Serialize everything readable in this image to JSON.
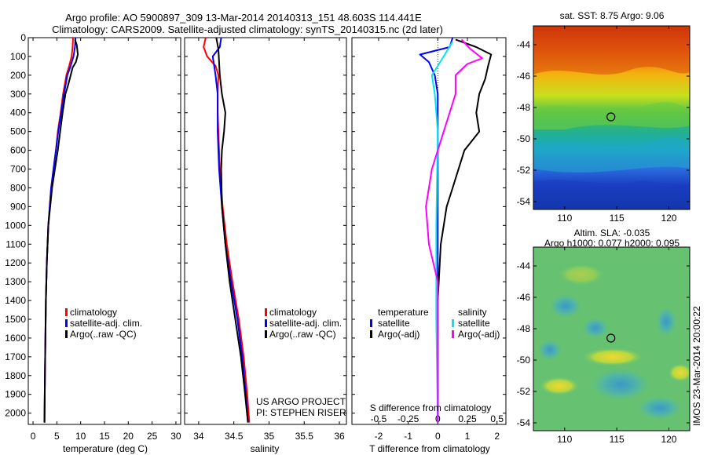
{
  "header": {
    "line1": "Argo profile: AO 5900897_309 13-Mar-2014 20140313_151 48.603S 114.441E",
    "line2": "Climatology: CARS2009. Satellite-adjusted climatology: synTS_20140315.nc (2d later)"
  },
  "colors": {
    "climatology": "#ff0000",
    "satellite": "#0000ff",
    "argo": "#000000",
    "sat_salinity": "#00e5ee",
    "argo_salinity": "#ff00ff"
  },
  "credit": {
    "line1": "US ARGO PROJECT",
    "line2": "PI: STEPHEN RISER"
  },
  "side_stamp": "IMOS 23-Mar-2014 20:00:22",
  "chart_data": [
    {
      "id": "temperature",
      "type": "line",
      "xlabel": "temperature (deg C)",
      "ylabel": "",
      "xlim": [
        -1,
        31
      ],
      "ylim": [
        2060,
        0
      ],
      "xticks": [
        0,
        5,
        10,
        15,
        20,
        25,
        30
      ],
      "xticklabels": [
        "0",
        "5",
        "10",
        "15",
        "20",
        "25",
        "30"
      ],
      "yticks": [
        0,
        100,
        200,
        300,
        400,
        500,
        600,
        700,
        800,
        900,
        1000,
        1100,
        1200,
        1300,
        1400,
        1500,
        1600,
        1700,
        1800,
        1900,
        2000
      ],
      "yticklabels": [
        "0",
        "100",
        "200",
        "300",
        "400",
        "500",
        "600",
        "700",
        "800",
        "900",
        "1000",
        "1100",
        "1200",
        "1300",
        "1400",
        "1500",
        "1600",
        "1700",
        "1800",
        "1900",
        "2000"
      ],
      "legend": [
        "climatology",
        "satellite-adj. clim.",
        "Argo(..raw -QC)"
      ],
      "series": [
        {
          "name": "climatology",
          "color": "#ff0000",
          "points": [
            [
              8.4,
              0
            ],
            [
              8.3,
              50
            ],
            [
              8.1,
              100
            ],
            [
              7.6,
              150
            ],
            [
              7.0,
              200
            ],
            [
              6.3,
              300
            ],
            [
              5.8,
              400
            ],
            [
              5.2,
              500
            ],
            [
              4.8,
              600
            ],
            [
              4.3,
              700
            ],
            [
              3.8,
              800
            ],
            [
              3.5,
              900
            ],
            [
              3.2,
              1000
            ],
            [
              2.9,
              1200
            ],
            [
              2.7,
              1400
            ],
            [
              2.6,
              1600
            ],
            [
              2.5,
              1800
            ],
            [
              2.4,
              2050
            ]
          ]
        },
        {
          "name": "satellite-adj. clim.",
          "color": "#0000ff",
          "points": [
            [
              8.9,
              0
            ],
            [
              8.8,
              50
            ],
            [
              8.5,
              100
            ],
            [
              7.9,
              150
            ],
            [
              7.2,
              200
            ],
            [
              6.5,
              300
            ],
            [
              5.9,
              400
            ],
            [
              5.3,
              500
            ],
            [
              4.8,
              600
            ],
            [
              4.3,
              700
            ],
            [
              3.8,
              800
            ],
            [
              3.5,
              900
            ],
            [
              3.2,
              1000
            ],
            [
              2.9,
              1200
            ],
            [
              2.7,
              1400
            ],
            [
              2.6,
              1600
            ],
            [
              2.5,
              1800
            ],
            [
              2.4,
              2050
            ]
          ]
        },
        {
          "name": "Argo(..raw -QC)",
          "color": "#000000",
          "points": [
            [
              8.8,
              10
            ],
            [
              9.2,
              40
            ],
            [
              9.4,
              90
            ],
            [
              9.0,
              130
            ],
            [
              8.3,
              160
            ],
            [
              7.9,
              200
            ],
            [
              7.4,
              250
            ],
            [
              6.8,
              300
            ],
            [
              6.2,
              400
            ],
            [
              5.7,
              500
            ],
            [
              5.2,
              600
            ],
            [
              4.6,
              700
            ],
            [
              4.0,
              800
            ],
            [
              3.6,
              900
            ],
            [
              3.2,
              1000
            ],
            [
              2.9,
              1200
            ],
            [
              2.7,
              1400
            ],
            [
              2.6,
              1600
            ],
            [
              2.5,
              1800
            ],
            [
              2.4,
              2050
            ]
          ]
        }
      ]
    },
    {
      "id": "salinity",
      "type": "line",
      "xlabel": "salinity",
      "xlim": [
        33.8,
        36.1
      ],
      "ylim": [
        2060,
        0
      ],
      "xticks": [
        34,
        34.5,
        35,
        35.5,
        36
      ],
      "xticklabels": [
        "34",
        "34.5",
        "35",
        "35.5",
        "36"
      ],
      "yticks": [
        0,
        100,
        200,
        300,
        400,
        500,
        600,
        700,
        800,
        900,
        1000,
        1100,
        1200,
        1300,
        1400,
        1500,
        1600,
        1700,
        1800,
        1900,
        2000
      ],
      "legend": [
        "climatology",
        "satellite-adj. clim.",
        "Argo(..raw -QC)"
      ],
      "series": [
        {
          "name": "climatology",
          "color": "#ff0000",
          "points": [
            [
              34.1,
              0
            ],
            [
              34.07,
              50
            ],
            [
              34.12,
              100
            ],
            [
              34.24,
              150
            ],
            [
              34.28,
              200
            ],
            [
              34.27,
              300
            ],
            [
              34.27,
              400
            ],
            [
              34.28,
              500
            ],
            [
              34.3,
              700
            ],
            [
              34.34,
              900
            ],
            [
              34.4,
              1100
            ],
            [
              34.48,
              1300
            ],
            [
              34.57,
              1500
            ],
            [
              34.64,
              1700
            ],
            [
              34.69,
              1900
            ],
            [
              34.72,
              2050
            ]
          ]
        },
        {
          "name": "satellite-adj. clim.",
          "color": "#0000ff",
          "points": [
            [
              34.32,
              0
            ],
            [
              34.3,
              50
            ],
            [
              34.2,
              100
            ],
            [
              34.22,
              150
            ],
            [
              34.24,
              200
            ],
            [
              34.27,
              300
            ],
            [
              34.27,
              400
            ],
            [
              34.27,
              500
            ],
            [
              34.29,
              700
            ],
            [
              34.33,
              900
            ],
            [
              34.38,
              1100
            ],
            [
              34.46,
              1300
            ],
            [
              34.55,
              1500
            ],
            [
              34.62,
              1700
            ],
            [
              34.67,
              1900
            ],
            [
              34.7,
              2050
            ]
          ]
        },
        {
          "name": "Argo(..raw -QC)",
          "color": "#000000",
          "points": [
            [
              34.25,
              0
            ],
            [
              34.28,
              60
            ],
            [
              34.29,
              130
            ],
            [
              34.3,
              200
            ],
            [
              34.33,
              300
            ],
            [
              34.38,
              400
            ],
            [
              34.36,
              500
            ],
            [
              34.33,
              600
            ],
            [
              34.32,
              700
            ],
            [
              34.33,
              900
            ],
            [
              34.38,
              1100
            ],
            [
              34.44,
              1300
            ],
            [
              34.52,
              1500
            ],
            [
              34.6,
              1700
            ],
            [
              34.66,
              1900
            ],
            [
              34.7,
              2050
            ]
          ]
        }
      ]
    },
    {
      "id": "difference",
      "type": "line",
      "xlabel": "T difference from climatology",
      "xlabel_top": "S difference from climatology",
      "xlim": [
        -2.9,
        2.3
      ],
      "ylim": [
        2060,
        0
      ],
      "xticks": [
        -2,
        -1,
        0,
        1,
        2
      ],
      "xticklabels": [
        "-2",
        "-1",
        "0",
        "1",
        "2"
      ],
      "sticks_positions": [
        -2,
        -1,
        0,
        1,
        2
      ],
      "sticklabels": [
        "-0.5",
        "-0.25",
        "0",
        "0.25",
        "0.5"
      ],
      "yticks": [
        0,
        100,
        200,
        300,
        400,
        500,
        600,
        700,
        800,
        900,
        1000,
        1100,
        1200,
        1300,
        1400,
        1500,
        1600,
        1700,
        1800,
        1900,
        2000
      ],
      "legend_groups": [
        {
          "title": "temperature",
          "items": [
            "satellite",
            "Argo(-adj)"
          ]
        },
        {
          "title": "salinity",
          "items": [
            "satellite",
            "Argo(-adj)"
          ]
        }
      ],
      "series": [
        {
          "name": "temperature satellite",
          "color": "#0000ff",
          "points": [
            [
              0.5,
              0
            ],
            [
              0.4,
              50
            ],
            [
              -0.6,
              90
            ],
            [
              -0.3,
              130
            ],
            [
              -0.1,
              200
            ],
            [
              0,
              300
            ],
            [
              0,
              500
            ],
            [
              0,
              800
            ],
            [
              0,
              1200
            ],
            [
              0,
              1600
            ],
            [
              0,
              2050
            ]
          ]
        },
        {
          "name": "temperature Argo(-adj)",
          "color": "#000000",
          "points": [
            [
              0.6,
              10
            ],
            [
              1.3,
              50
            ],
            [
              1.8,
              90
            ],
            [
              1.7,
              150
            ],
            [
              1.6,
              220
            ],
            [
              1.4,
              300
            ],
            [
              1.3,
              400
            ],
            [
              1.4,
              500
            ],
            [
              0.9,
              600
            ],
            [
              0.7,
              700
            ],
            [
              0.5,
              800
            ],
            [
              0.3,
              900
            ],
            [
              0.1,
              1100
            ],
            [
              0,
              1400
            ],
            [
              0,
              2050
            ]
          ]
        },
        {
          "name": "salinity satellite",
          "color": "#00e5ee",
          "points": [
            [
              0.5,
              20
            ],
            [
              0.2,
              100
            ],
            [
              -0.2,
              200
            ],
            [
              -0.1,
              300
            ],
            [
              0,
              500
            ],
            [
              -0.05,
              1000
            ],
            [
              -0.05,
              1500
            ],
            [
              0,
              2050
            ]
          ]
        },
        {
          "name": "salinity Argo(-adj)",
          "color": "#ff00ff",
          "points": [
            [
              0.8,
              10
            ],
            [
              1.1,
              60
            ],
            [
              1.5,
              110
            ],
            [
              1.0,
              140
            ],
            [
              0.6,
              200
            ],
            [
              0.6,
              300
            ],
            [
              0.4,
              400
            ],
            [
              0.2,
              500
            ],
            [
              -0.2,
              700
            ],
            [
              -0.4,
              900
            ],
            [
              -0.3,
              1100
            ],
            [
              0,
              1300
            ],
            [
              0,
              2050
            ]
          ]
        }
      ]
    },
    {
      "id": "sst_map",
      "type": "heatmap",
      "title": "sat. SST: 8.75 Argo: 9.06",
      "xlim": [
        107,
        122
      ],
      "ylim": [
        -54.5,
        -42.8
      ],
      "xticks": [
        110,
        115,
        120
      ],
      "yticks": [
        -44,
        -46,
        -48,
        -50,
        -52,
        -54
      ],
      "marker": {
        "lon": 114.44,
        "lat": -48.6
      }
    },
    {
      "id": "sla_map",
      "type": "heatmap",
      "title_line1": "Altim. SLA: -0.035",
      "title_line2": "Argo h1000: 0.077 h2000: 0.095",
      "xlim": [
        107,
        122
      ],
      "ylim": [
        -54.5,
        -42.8
      ],
      "xticks": [
        110,
        115,
        120
      ],
      "yticks": [
        -44,
        -46,
        -48,
        -50,
        -52,
        -54
      ],
      "marker": {
        "lon": 114.44,
        "lat": -48.6
      }
    }
  ]
}
